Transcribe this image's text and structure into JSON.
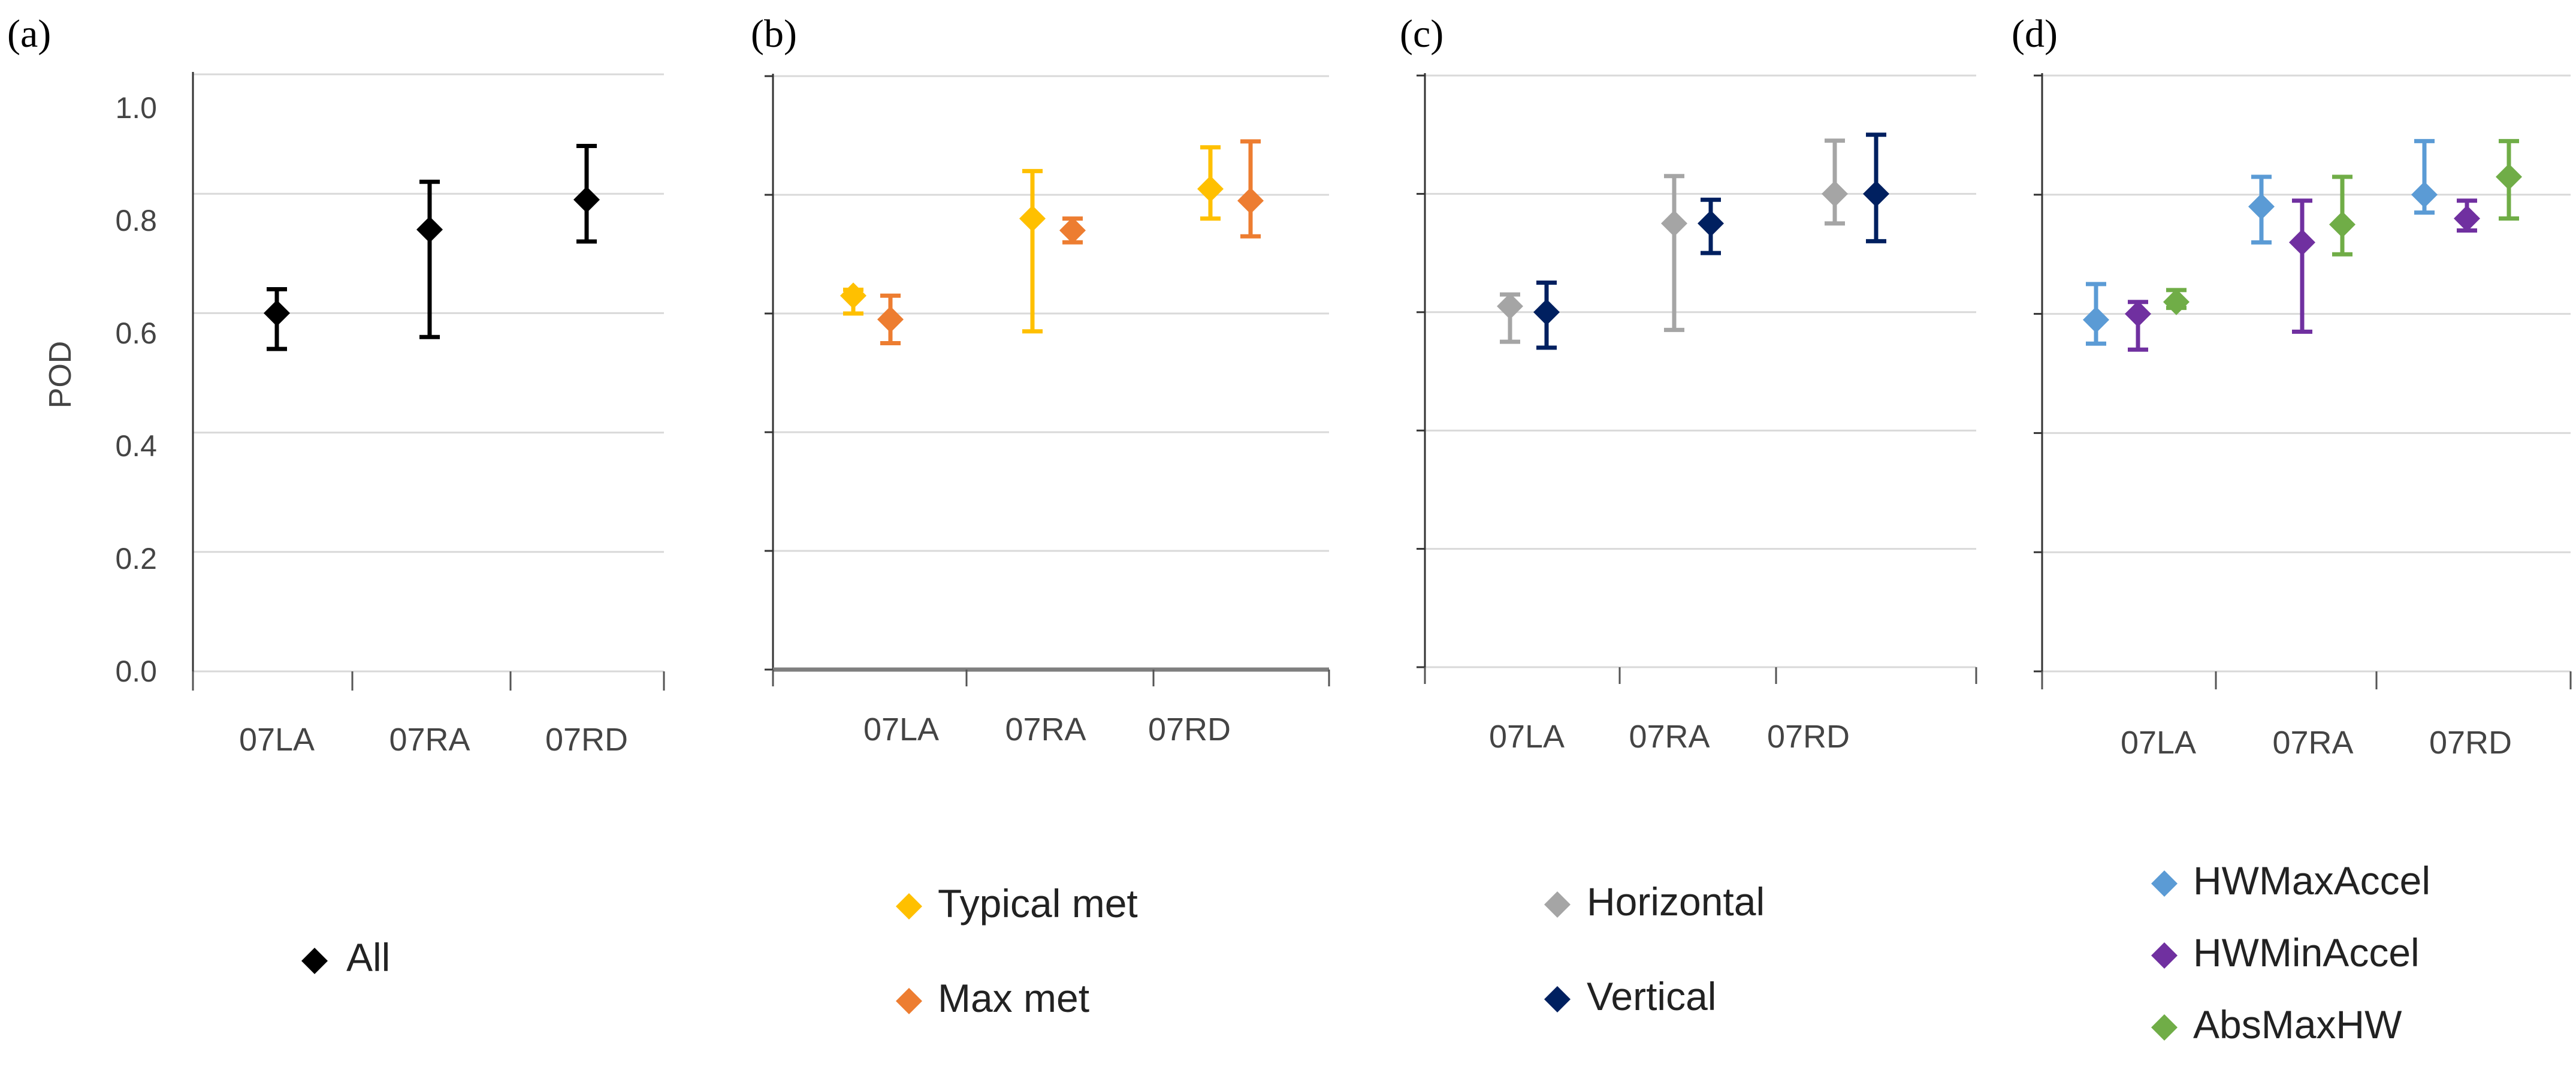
{
  "figure": {
    "ylabel": "POD",
    "yticks": [
      "0.0",
      "0.2",
      "0.4",
      "0.6",
      "0.8",
      "1.0"
    ]
  },
  "chart_data": [
    {
      "type": "scatter",
      "panel": "(a)",
      "categories": [
        "07LA",
        "07RA",
        "07RD"
      ],
      "ylabel": "POD",
      "ylim": [
        0,
        1.0
      ],
      "yticks": [
        0.0,
        0.2,
        0.4,
        0.6,
        0.8,
        1.0
      ],
      "grid": true,
      "legend_position": "bottom",
      "series": [
        {
          "name": "All",
          "color": "#000000",
          "values": [
            0.6,
            0.74,
            0.79
          ],
          "err_low": [
            0.54,
            0.56,
            0.72
          ],
          "err_high": [
            0.64,
            0.82,
            0.88
          ]
        }
      ]
    },
    {
      "type": "scatter",
      "panel": "(b)",
      "categories": [
        "07LA",
        "07RA",
        "07RD"
      ],
      "ylim": [
        0,
        1.0
      ],
      "yticks": [
        0.0,
        0.2,
        0.4,
        0.6,
        0.8,
        1.0
      ],
      "grid": true,
      "legend_position": "bottom",
      "series": [
        {
          "name": "Typical met",
          "color": "#FFC000",
          "values": [
            0.63,
            0.76,
            0.81
          ],
          "err_low": [
            0.6,
            0.57,
            0.76
          ],
          "err_high": [
            0.64,
            0.84,
            0.88
          ]
        },
        {
          "name": "Max met",
          "color": "#ED7D31",
          "values": [
            0.59,
            0.74,
            0.79
          ],
          "err_low": [
            0.55,
            0.72,
            0.73
          ],
          "err_high": [
            0.63,
            0.76,
            0.89
          ]
        }
      ]
    },
    {
      "type": "scatter",
      "panel": "(c)",
      "categories": [
        "07LA",
        "07RA",
        "07RD"
      ],
      "ylim": [
        0,
        1.0
      ],
      "yticks": [
        0.0,
        0.2,
        0.4,
        0.6,
        0.8,
        1.0
      ],
      "grid": true,
      "legend_position": "bottom",
      "series": [
        {
          "name": "Horizontal",
          "color": "#A5A5A5",
          "values": [
            0.61,
            0.75,
            0.8
          ],
          "err_low": [
            0.55,
            0.57,
            0.75
          ],
          "err_high": [
            0.63,
            0.83,
            0.89
          ]
        },
        {
          "name": "Vertical",
          "color": "#002060",
          "values": [
            0.6,
            0.75,
            0.8
          ],
          "err_low": [
            0.54,
            0.7,
            0.72
          ],
          "err_high": [
            0.65,
            0.79,
            0.9
          ]
        }
      ]
    },
    {
      "type": "scatter",
      "panel": "(d)",
      "categories": [
        "07LA",
        "07RA",
        "07RD"
      ],
      "ylim": [
        0,
        1.0
      ],
      "yticks": [
        0.0,
        0.2,
        0.4,
        0.6,
        0.8,
        1.0
      ],
      "grid": true,
      "legend_position": "bottom",
      "series": [
        {
          "name": "HWMaxAccel",
          "color": "#5B9BD5",
          "values": [
            0.59,
            0.78,
            0.8
          ],
          "err_low": [
            0.55,
            0.72,
            0.77
          ],
          "err_high": [
            0.65,
            0.83,
            0.89
          ]
        },
        {
          "name": "HWMinAccel",
          "color": "#7030A0",
          "values": [
            0.6,
            0.72,
            0.76
          ],
          "err_low": [
            0.54,
            0.57,
            0.74
          ],
          "err_high": [
            0.62,
            0.79,
            0.79
          ]
        },
        {
          "name": "AbsMaxHW",
          "color": "#70AD47",
          "values": [
            0.62,
            0.75,
            0.83
          ],
          "err_low": [
            0.61,
            0.7,
            0.76
          ],
          "err_high": [
            0.64,
            0.83,
            0.89
          ]
        }
      ]
    }
  ]
}
